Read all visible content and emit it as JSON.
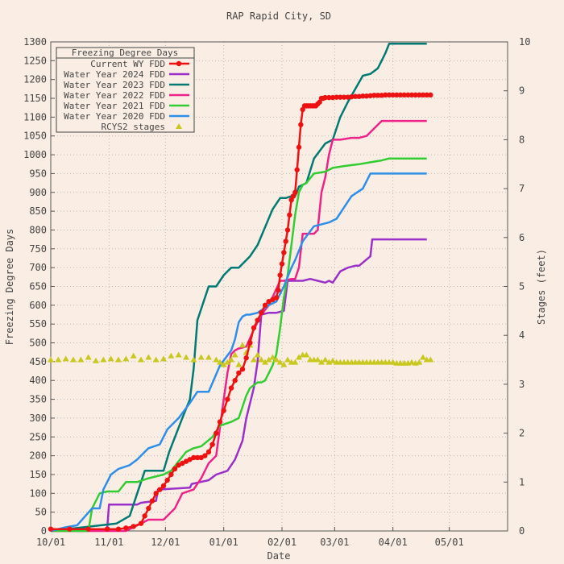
{
  "chart_data": {
    "type": "line",
    "title": "RAP Rapid City, SD",
    "xlabel": "Date",
    "ylabel": "Freezing Degree Days",
    "y2label": "Stages (feet)",
    "x_ticks": [
      "10/01",
      "11/01",
      "12/01",
      "01/01",
      "02/01",
      "03/01",
      "04/01",
      "05/01"
    ],
    "x_range_days": [
      0,
      243
    ],
    "ylim": [
      0,
      1300
    ],
    "y_ticks": [
      0,
      50,
      100,
      150,
      200,
      250,
      300,
      350,
      400,
      450,
      500,
      550,
      600,
      650,
      700,
      750,
      800,
      850,
      900,
      950,
      1000,
      1050,
      1100,
      1150,
      1200,
      1250,
      1300
    ],
    "y2lim": [
      0,
      10
    ],
    "y2_ticks": [
      0,
      1,
      2,
      3,
      4,
      5,
      6,
      7,
      8,
      9,
      10
    ],
    "grid": true,
    "legend": {
      "title": "Freezing Degree Days",
      "placement": "top-left",
      "entries": [
        "Current WY FDD",
        "Water Year 2024 FDD",
        "Water Year 2023 FDD",
        "Water Year 2022 FDD",
        "Water Year 2021 FDD",
        "Water Year 2020 FDD",
        "RCYS2 stages"
      ]
    },
    "series": [
      {
        "name": "Water Year 2024 FDD",
        "color": "#9b30c8",
        "axis": "left",
        "x": [
          0,
          30,
          31,
          46,
          48,
          56,
          57,
          74,
          75,
          84,
          88,
          94,
          98,
          102,
          104,
          108,
          110,
          112,
          116,
          120,
          124,
          126,
          130,
          134,
          138,
          142,
          146,
          148,
          150,
          154,
          158,
          162,
          164,
          170,
          171,
          180,
          200
        ],
        "y": [
          0,
          5,
          70,
          70,
          75,
          80,
          110,
          115,
          125,
          135,
          150,
          160,
          190,
          240,
          300,
          380,
          450,
          575,
          580,
          580,
          585,
          665,
          665,
          665,
          670,
          665,
          660,
          665,
          660,
          690,
          700,
          705,
          705,
          730,
          775,
          775,
          775
        ]
      },
      {
        "name": "Water Year 2023 FDD",
        "color": "#007a73",
        "axis": "left",
        "x": [
          0,
          35,
          42,
          46,
          50,
          60,
          63,
          70,
          74,
          76,
          78,
          84,
          88,
          92,
          96,
          100,
          106,
          110,
          118,
          122,
          125,
          128,
          130,
          132,
          134,
          136,
          140,
          146,
          150,
          154,
          158,
          162,
          166,
          170,
          174,
          176,
          178,
          180,
          185,
          190,
          200
        ],
        "y": [
          0,
          20,
          40,
          100,
          160,
          160,
          210,
          300,
          350,
          430,
          560,
          650,
          650,
          680,
          700,
          700,
          730,
          760,
          855,
          885,
          885,
          890,
          890,
          915,
          920,
          925,
          990,
          1030,
          1040,
          1100,
          1140,
          1175,
          1210,
          1215,
          1230,
          1250,
          1270,
          1295,
          1295,
          1295,
          1295
        ]
      },
      {
        "name": "Water Year 2022 FDD",
        "color": "#ee2288",
        "axis": "left",
        "x": [
          0,
          40,
          48,
          52,
          60,
          66,
          70,
          76,
          80,
          84,
          88,
          92,
          94,
          96,
          98,
          100,
          104,
          108,
          112,
          116,
          122,
          124,
          128,
          130,
          132,
          134,
          140,
          142,
          144,
          146,
          148,
          150,
          154,
          160,
          164,
          168,
          176,
          178,
          180,
          185,
          190,
          200
        ],
        "y": [
          0,
          0,
          20,
          30,
          30,
          60,
          100,
          110,
          140,
          180,
          200,
          350,
          420,
          470,
          480,
          485,
          490,
          535,
          575,
          600,
          665,
          665,
          670,
          670,
          700,
          790,
          790,
          800,
          900,
          940,
          1000,
          1040,
          1040,
          1045,
          1045,
          1050,
          1090,
          1090,
          1090,
          1090,
          1090,
          1090
        ]
      },
      {
        "name": "Water Year 2021 FDD",
        "color": "#33cc33",
        "axis": "left",
        "x": [
          0,
          20,
          22,
          26,
          30,
          36,
          40,
          46,
          52,
          60,
          64,
          72,
          76,
          80,
          86,
          90,
          96,
          100,
          102,
          104,
          106,
          110,
          112,
          114,
          116,
          118,
          120,
          122,
          124,
          126,
          128,
          130,
          132,
          134,
          136,
          140,
          146,
          150,
          156,
          164,
          170,
          176,
          180,
          185,
          190,
          200
        ],
        "y": [
          0,
          0,
          60,
          100,
          105,
          105,
          130,
          130,
          140,
          150,
          160,
          210,
          220,
          225,
          250,
          280,
          290,
          300,
          330,
          360,
          380,
          395,
          395,
          400,
          420,
          440,
          470,
          540,
          620,
          680,
          760,
          840,
          900,
          920,
          925,
          950,
          955,
          965,
          970,
          975,
          980,
          985,
          990,
          990,
          990,
          990
        ]
      },
      {
        "name": "Water Year 2020 FDD",
        "color": "#2e8ee8",
        "axis": "left",
        "x": [
          0,
          8,
          14,
          22,
          26,
          28,
          32,
          36,
          42,
          46,
          52,
          58,
          62,
          68,
          74,
          78,
          84,
          90,
          96,
          98,
          100,
          102,
          104,
          106,
          110,
          116,
          120,
          124,
          128,
          130,
          134,
          140,
          148,
          152,
          156,
          160,
          166,
          170,
          174,
          178,
          184,
          190,
          200
        ],
        "y": [
          0,
          10,
          15,
          60,
          60,
          110,
          150,
          165,
          175,
          190,
          220,
          230,
          270,
          300,
          340,
          370,
          370,
          440,
          480,
          510,
          555,
          570,
          575,
          575,
          580,
          600,
          610,
          650,
          700,
          720,
          770,
          810,
          820,
          830,
          860,
          890,
          910,
          950,
          950,
          950,
          950,
          950,
          950
        ]
      },
      {
        "name": "Current WY FDD",
        "color": "#ee1111",
        "axis": "left",
        "x": [
          0,
          10,
          20,
          30,
          36,
          40,
          44,
          48,
          50,
          52,
          54,
          56,
          58,
          60,
          62,
          64,
          66,
          68,
          70,
          72,
          74,
          76,
          78,
          80,
          82,
          84,
          86,
          88,
          90,
          92,
          94,
          96,
          98,
          100,
          102,
          104,
          106,
          108,
          110,
          112,
          114,
          116,
          118,
          120,
          121,
          122,
          123,
          124,
          125,
          126,
          127,
          128,
          129,
          130,
          131,
          132,
          133,
          134,
          135,
          136,
          137,
          138,
          139,
          140,
          141,
          142,
          143,
          144,
          145,
          146,
          148,
          150,
          152,
          154,
          156,
          158,
          160,
          162,
          164,
          166,
          168,
          170,
          172,
          174,
          176,
          178,
          180,
          182,
          184,
          186,
          188,
          190,
          192,
          194,
          196,
          198,
          200,
          202
        ],
        "y": [
          5,
          5,
          5,
          5,
          5,
          8,
          12,
          20,
          40,
          60,
          80,
          100,
          110,
          120,
          135,
          150,
          165,
          175,
          180,
          185,
          190,
          195,
          195,
          195,
          200,
          210,
          230,
          260,
          290,
          320,
          350,
          380,
          400,
          420,
          430,
          460,
          500,
          540,
          560,
          580,
          600,
          610,
          615,
          620,
          640,
          680,
          710,
          740,
          770,
          800,
          840,
          880,
          890,
          900,
          960,
          1020,
          1080,
          1120,
          1130,
          1130,
          1130,
          1130,
          1130,
          1130,
          1130,
          1135,
          1140,
          1150,
          1150,
          1152,
          1152,
          1152,
          1153,
          1153,
          1153,
          1153,
          1154,
          1155,
          1155,
          1156,
          1156,
          1157,
          1158,
          1158,
          1158,
          1159,
          1159,
          1159,
          1159,
          1159,
          1159,
          1159,
          1159,
          1159,
          1159,
          1159,
          1159,
          1159
        ]
      },
      {
        "name": "RCYS2 stages",
        "color": "#c8c81e",
        "axis": "right",
        "marker": "triangle",
        "x": [
          0,
          4,
          8,
          12,
          16,
          20,
          24,
          28,
          32,
          36,
          40,
          44,
          48,
          52,
          56,
          60,
          64,
          68,
          72,
          76,
          80,
          84,
          88,
          90,
          92,
          94,
          96,
          98,
          100,
          102,
          104,
          106,
          108,
          110,
          112,
          114,
          116,
          118,
          120,
          122,
          124,
          126,
          128,
          130,
          132,
          134,
          136,
          138,
          140,
          142,
          144,
          146,
          148,
          150,
          152,
          154,
          156,
          158,
          160,
          162,
          164,
          166,
          168,
          170,
          172,
          174,
          176,
          178,
          180,
          182,
          184,
          186,
          188,
          190,
          192,
          194,
          196,
          198,
          200,
          202
        ],
        "y": [
          3.5,
          3.5,
          3.52,
          3.5,
          3.5,
          3.55,
          3.48,
          3.5,
          3.52,
          3.5,
          3.52,
          3.58,
          3.5,
          3.55,
          3.5,
          3.52,
          3.58,
          3.6,
          3.55,
          3.5,
          3.55,
          3.55,
          3.5,
          3.45,
          3.4,
          3.45,
          3.5,
          3.6,
          3.4,
          3.8,
          3.65,
          3.8,
          3.5,
          3.6,
          3.5,
          3.45,
          3.5,
          3.55,
          3.5,
          3.45,
          3.4,
          3.5,
          3.45,
          3.45,
          3.55,
          3.6,
          3.6,
          3.5,
          3.5,
          3.5,
          3.45,
          3.5,
          3.45,
          3.48,
          3.45,
          3.45,
          3.45,
          3.45,
          3.45,
          3.45,
          3.45,
          3.45,
          3.45,
          3.45,
          3.45,
          3.45,
          3.45,
          3.45,
          3.45,
          3.45,
          3.43,
          3.43,
          3.43,
          3.43,
          3.45,
          3.43,
          3.45,
          3.55,
          3.5,
          3.5
        ]
      }
    ]
  }
}
